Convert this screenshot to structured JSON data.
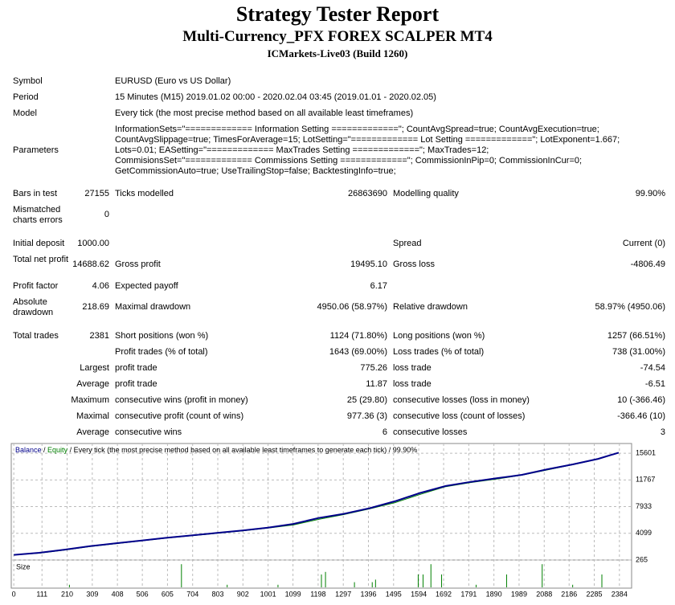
{
  "header": {
    "title": "Strategy Tester Report",
    "subtitle": "Multi-Currency_PFX FOREX SCALPER MT4",
    "server": "ICMarkets-Live03 (Build 1260)"
  },
  "info": [
    {
      "label": "Symbol",
      "value": [
        "EURUSD (Euro vs US Dollar)"
      ]
    },
    {
      "label": "Period",
      "value": [
        "15 Minutes (M15) 2019.01.02 00:00 - 2020.02.04 03:45 (2019.01.01 - 2020.02.05)"
      ]
    },
    {
      "label": "Model",
      "value": [
        "Every tick (the most precise method based on all available least timeframes)"
      ]
    },
    {
      "label": "Parameters",
      "value": [
        "InformationSets=\"============= Information Setting =============\"; CountAvgSpread=true; CountAvgExecution=true;",
        "CountAvgSlippage=true; TimesForAverage=15; LotSetting=\"============= Lot Setting =============\"; LotExponent=1.667;",
        "Lots=0.01; EASetting=\"============= MaxTrades Setting =============\"; MaxTrades=12;",
        "CommisionsSet=\"============= Commissions Setting =============\"; CommissionInPip=0; CommissionInCur=0;",
        "GetCommissionAuto=true; UseTrailingStop=false; BacktestingInfo=true;"
      ]
    }
  ],
  "stats": [
    {
      "label1": "Bars in test",
      "value1": "27155",
      "label2": "Ticks modelled",
      "value2": "26863690",
      "label3": "Modelling quality",
      "value3": "99.90%"
    },
    {
      "label1": "Mismatched charts errors",
      "value1": "0"
    },
    {
      "label1": "Initial deposit",
      "value1": "1000.00",
      "label3": "Spread",
      "value3": "Current (0)"
    },
    {
      "label1": "Total net profit",
      "value1": "14688.62",
      "label2": "Gross profit",
      "value2": "19495.10",
      "label3": "Gross loss",
      "value3": "-4806.49"
    },
    {
      "label1": "Profit factor",
      "value1": "4.06",
      "label2": "Expected payoff",
      "value2": "6.17"
    },
    {
      "label1": "Absolute drawdown",
      "value1": "218.69",
      "label2": "Maximal drawdown",
      "value2": "4950.06 (58.97%)",
      "label3": "Relative drawdown",
      "value3": "58.97% (4950.06)"
    },
    {
      "label1": "Total trades",
      "value1": "2381",
      "label2": "Short positions (won %)",
      "value2": "1124 (71.80%)",
      "label3": "Long positions (won %)",
      "value3": "1257 (66.51%)"
    },
    {
      "label2": "Profit trades (% of total)",
      "value2": "1643 (69.00%)",
      "label3": "Loss trades (% of total)",
      "value3": "738 (31.00%)"
    },
    {
      "value1": "Largest",
      "label2": "profit trade",
      "value2": "775.26",
      "label3": "loss trade",
      "value3": "-74.54"
    },
    {
      "value1": "Average",
      "label2": "profit trade",
      "value2": "11.87",
      "label3": "loss trade",
      "value3": "-6.51"
    },
    {
      "value1": "Maximum",
      "label2": "consecutive wins (profit in money)",
      "value2": "25 (29.80)",
      "label3": "consecutive losses (loss in money)",
      "value3": "10 (-366.46)"
    },
    {
      "value1": "Maximal",
      "label2": "consecutive profit (count of wins)",
      "value2": "977.36 (3)",
      "label3": "consecutive loss (count of losses)",
      "value3": "-366.46 (10)"
    },
    {
      "value1": "Average",
      "label2": "consecutive wins",
      "value2": "6",
      "label3": "consecutive losses",
      "value3": "3"
    }
  ],
  "chart": {
    "type": "line",
    "legend": {
      "balance": "Balance",
      "equity": "Equity",
      "separator": " / ",
      "description": "Every tick (the most precise method based on all available least timeframes to generate each tick)",
      "quality": "99.90%"
    },
    "x": [
      0,
      100,
      200,
      300,
      400,
      500,
      600,
      700,
      800,
      900,
      1000,
      1100,
      1200,
      1300,
      1400,
      1500,
      1600,
      1700,
      1800,
      1900,
      2000,
      2100,
      2200,
      2300,
      2381
    ],
    "series": [
      {
        "name": "Balance",
        "color": "#00008b",
        "values": [
          1000,
          1300,
          1750,
          2250,
          2650,
          3050,
          3450,
          3800,
          4150,
          4500,
          4900,
          5450,
          6300,
          6900,
          7700,
          8700,
          9900,
          10900,
          11500,
          12000,
          12500,
          13300,
          14000,
          14800,
          15688
        ]
      },
      {
        "name": "Equity",
        "color": "#008000",
        "values": [
          1000,
          1250,
          1700,
          2200,
          2600,
          3000,
          3400,
          3750,
          4100,
          4450,
          4850,
          5300,
          6100,
          6800,
          7600,
          8500,
          9700,
          10800,
          11400,
          11900,
          12450,
          13200,
          13950,
          14750,
          15688
        ]
      }
    ],
    "xlim": [
      -10,
      2432
    ],
    "ylim": [
      265,
      17000
    ],
    "yticks": [
      265,
      4099,
      7933,
      11767,
      15601
    ],
    "xticks": [
      0,
      111,
      210,
      309,
      408,
      506,
      605,
      704,
      803,
      902,
      1001,
      1099,
      1198,
      1297,
      1396,
      1495,
      1594,
      1692,
      1791,
      1890,
      1989,
      2088,
      2186,
      2285,
      2384
    ],
    "grid": true,
    "size": {
      "label": "Size",
      "color": "#008000",
      "ylim": [
        0,
        0.1
      ],
      "x": [
        219,
        660,
        840,
        1040,
        1211,
        1227,
        1341,
        1411,
        1424,
        1592,
        1611,
        1642,
        1684,
        1820,
        1940,
        2080,
        2200,
        2315
      ],
      "values": [
        0.01,
        0.09,
        0.01,
        0.01,
        0.05,
        0.06,
        0.02,
        0.02,
        0.03,
        0.05,
        0.05,
        0.09,
        0.05,
        0.01,
        0.05,
        0.09,
        0.01,
        0.05
      ]
    }
  }
}
